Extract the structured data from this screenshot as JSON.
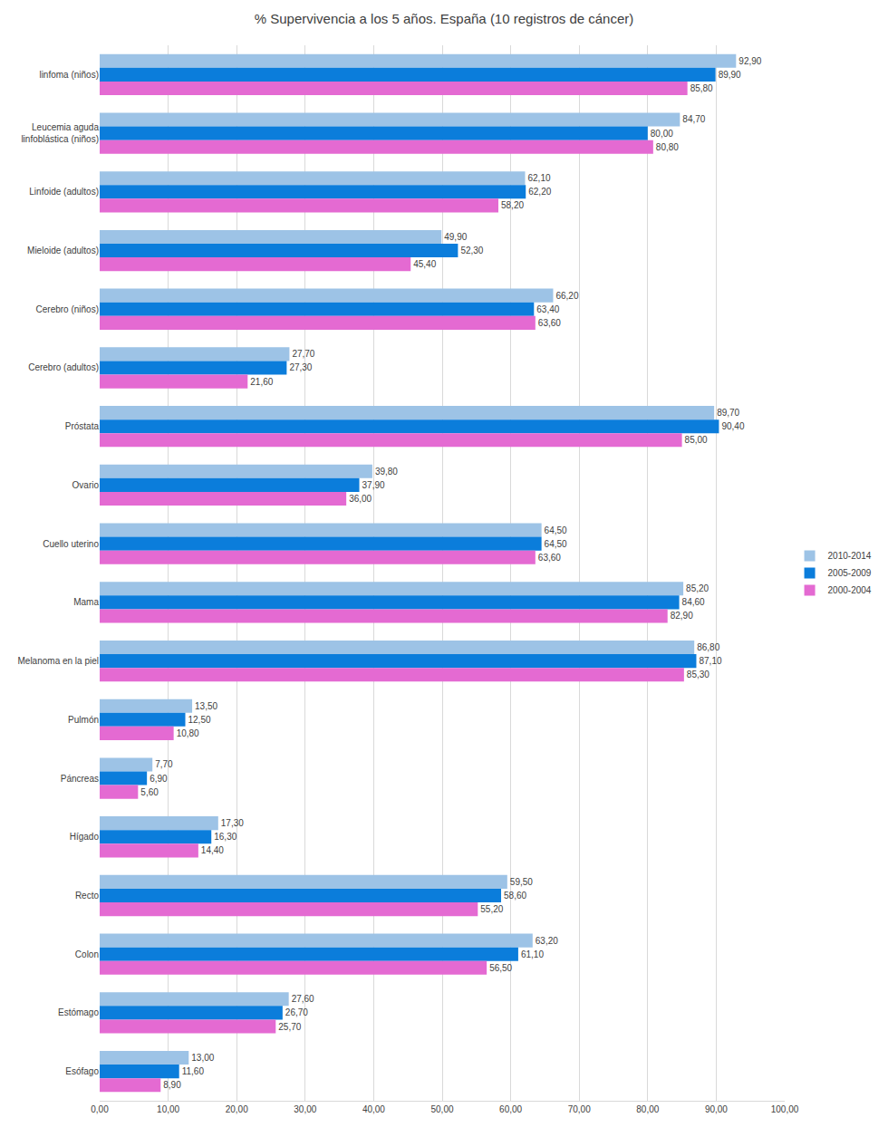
{
  "chart_data": {
    "type": "bar",
    "orientation": "horizontal",
    "title": "% Supervivencia a los 5 años. España (10 registros de cáncer)",
    "categories": [
      "linfoma (niños)",
      "Leucemia aguda linfoblástica (niños)",
      "Linfoide (adultos)",
      "Mieloide (adultos)",
      "Cerebro (niños)",
      "Cerebro (adultos)",
      "Próstata",
      "Ovario",
      "Cuello uterino",
      "Mama",
      "Melanoma en la piel",
      "Pulmón",
      "Páncreas",
      "Hígado",
      "Recto",
      "Colon",
      "Estómago",
      "Esófago"
    ],
    "series": [
      {
        "name": "2010-2014",
        "color": "#9dc3e6",
        "values": [
          92.9,
          84.7,
          62.1,
          49.9,
          66.2,
          27.7,
          89.7,
          39.8,
          64.5,
          85.2,
          86.8,
          13.5,
          7.7,
          17.3,
          59.5,
          63.2,
          27.6,
          13.0
        ],
        "value_labels": [
          "92,90",
          "84,70",
          "62,10",
          "49,90",
          "66,20",
          "27,70",
          "89,70",
          "39,80",
          "64,50",
          "85,20",
          "86,80",
          "13,50",
          "7,70",
          "17,30",
          "59,50",
          "63,20",
          "27,60",
          "13,00"
        ]
      },
      {
        "name": "2005-2009",
        "color": "#0b7ddb",
        "values": [
          89.9,
          80.0,
          62.2,
          52.3,
          63.4,
          27.3,
          90.4,
          37.9,
          64.5,
          84.6,
          87.1,
          12.5,
          6.9,
          16.3,
          58.6,
          61.1,
          26.7,
          11.6
        ],
        "value_labels": [
          "89,90",
          "80,00",
          "62,20",
          "52,30",
          "63,40",
          "27,30",
          "90,40",
          "37,90",
          "64,50",
          "84,60",
          "87,10",
          "12,50",
          "6,90",
          "16,30",
          "58,60",
          "61,10",
          "26,70",
          "11,60"
        ]
      },
      {
        "name": "2000-2004",
        "color": "#e46ad2",
        "values": [
          85.8,
          80.8,
          58.2,
          45.4,
          63.6,
          21.6,
          85.0,
          36.0,
          63.6,
          82.9,
          85.3,
          10.8,
          5.6,
          14.4,
          55.2,
          56.5,
          25.7,
          8.9
        ],
        "value_labels": [
          "85,80",
          "80,80",
          "58,20",
          "45,40",
          "63,60",
          "21,60",
          "85,00",
          "36,00",
          "63,60",
          "82,90",
          "85,30",
          "10,80",
          "5,60",
          "14,40",
          "55,20",
          "56,50",
          "25,70",
          "8,90"
        ]
      }
    ],
    "xlim": [
      0,
      100
    ],
    "xticks": [
      {
        "value": 0,
        "label": "0,00"
      },
      {
        "value": 10,
        "label": "10,00"
      },
      {
        "value": 20,
        "label": "20,00"
      },
      {
        "value": 30,
        "label": "30,00"
      },
      {
        "value": 40,
        "label": "40,00"
      },
      {
        "value": 50,
        "label": "50,00"
      },
      {
        "value": 60,
        "label": "60,00"
      },
      {
        "value": 70,
        "label": "70,00"
      },
      {
        "value": 80,
        "label": "80,00"
      },
      {
        "value": 90,
        "label": "90,00"
      },
      {
        "value": 100,
        "label": "100,00"
      }
    ],
    "grid": true,
    "legend": "right",
    "data_labels": true
  }
}
